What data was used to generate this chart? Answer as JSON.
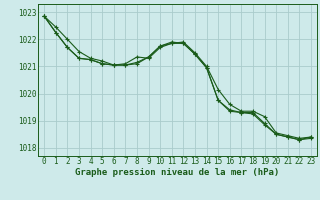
{
  "title": "Graphe pression niveau de la mer (hPa)",
  "bg_color": "#ceeaea",
  "grid_color": "#aacccc",
  "line_color": "#1a5c1a",
  "hours": [
    0,
    1,
    2,
    3,
    4,
    5,
    6,
    7,
    8,
    9,
    10,
    11,
    12,
    13,
    14,
    15,
    16,
    17,
    18,
    19,
    20,
    21,
    22,
    23
  ],
  "series1": [
    1022.85,
    1022.45,
    1022.0,
    1021.55,
    1021.3,
    1021.2,
    1021.05,
    1021.05,
    1021.1,
    1021.35,
    1021.75,
    1021.85,
    1021.9,
    1021.5,
    1021.0,
    1020.15,
    1019.6,
    1019.35,
    1019.35,
    1019.15,
    1018.55,
    1018.45,
    1018.35,
    1018.4
  ],
  "series2": [
    1022.85,
    1022.25,
    1021.7,
    1021.3,
    1021.25,
    1021.1,
    1021.05,
    1021.05,
    1021.15,
    1021.35,
    1021.75,
    1021.9,
    1021.85,
    1021.45,
    1020.95,
    1019.75,
    1019.4,
    1019.3,
    1019.3,
    1018.9,
    1018.5,
    1018.4,
    1018.3,
    1018.35
  ],
  "series3": [
    1022.85,
    1022.25,
    1021.7,
    1021.3,
    1021.25,
    1021.1,
    1021.05,
    1021.1,
    1021.35,
    1021.3,
    1021.7,
    1021.85,
    1021.85,
    1021.45,
    1020.95,
    1019.75,
    1019.35,
    1019.3,
    1019.25,
    1018.85,
    1018.5,
    1018.4,
    1018.3,
    1018.4
  ],
  "ylim": [
    1017.7,
    1023.3
  ],
  "yticks": [
    1018,
    1019,
    1020,
    1021,
    1022,
    1023
  ],
  "tick_fontsize": 5.5,
  "title_fontsize": 6.5
}
